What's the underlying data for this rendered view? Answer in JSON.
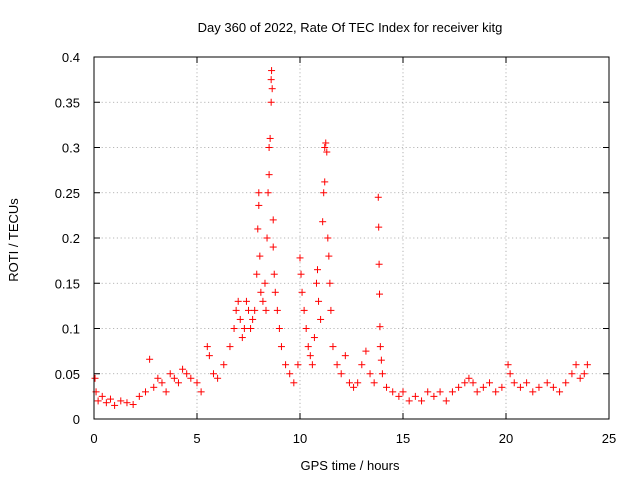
{
  "chart_data": {
    "type": "scatter",
    "title": "Day 360 of 2022, Rate Of TEC Index for receiver kitg",
    "xlabel": "GPS time / hours",
    "ylabel": "ROTI / TECUs",
    "xlim": [
      0,
      25
    ],
    "ylim": [
      0,
      0.4
    ],
    "grid": true,
    "x_ticks": [
      {
        "value": 0,
        "label": "0"
      },
      {
        "value": 5,
        "label": "5"
      },
      {
        "value": 10,
        "label": "10"
      },
      {
        "value": 15,
        "label": "15"
      },
      {
        "value": 20,
        "label": "20"
      },
      {
        "value": 25,
        "label": "25"
      }
    ],
    "y_ticks": [
      {
        "value": 0,
        "label": "0"
      },
      {
        "value": 0.05,
        "label": "0.05"
      },
      {
        "value": 0.1,
        "label": "0.1"
      },
      {
        "value": 0.15,
        "label": "0.15"
      },
      {
        "value": 0.2,
        "label": "0.2"
      },
      {
        "value": 0.25,
        "label": "0.25"
      },
      {
        "value": 0.3,
        "label": "0.3"
      },
      {
        "value": 0.35,
        "label": "0.35"
      },
      {
        "value": 0.4,
        "label": "0.4"
      }
    ],
    "marker": "+",
    "color": "#ff0000",
    "series": [
      {
        "name": "ROTI",
        "points": [
          [
            0.05,
            0.045
          ],
          [
            0.1,
            0.03
          ],
          [
            0.2,
            0.02
          ],
          [
            0.4,
            0.025
          ],
          [
            0.6,
            0.018
          ],
          [
            0.8,
            0.022
          ],
          [
            1.0,
            0.015
          ],
          [
            1.3,
            0.02
          ],
          [
            1.6,
            0.018
          ],
          [
            1.9,
            0.016
          ],
          [
            2.2,
            0.025
          ],
          [
            2.5,
            0.03
          ],
          [
            2.7,
            0.066
          ],
          [
            2.9,
            0.035
          ],
          [
            3.1,
            0.045
          ],
          [
            3.3,
            0.04
          ],
          [
            3.5,
            0.03
          ],
          [
            3.7,
            0.05
          ],
          [
            3.9,
            0.045
          ],
          [
            4.1,
            0.04
          ],
          [
            4.3,
            0.055
          ],
          [
            4.5,
            0.05
          ],
          [
            4.7,
            0.045
          ],
          [
            5.0,
            0.04
          ],
          [
            5.2,
            0.03
          ],
          [
            5.5,
            0.08
          ],
          [
            5.6,
            0.07
          ],
          [
            5.8,
            0.05
          ],
          [
            6.0,
            0.045
          ],
          [
            6.3,
            0.06
          ],
          [
            6.6,
            0.08
          ],
          [
            6.8,
            0.1
          ],
          [
            6.9,
            0.12
          ],
          [
            7.0,
            0.13
          ],
          [
            7.1,
            0.11
          ],
          [
            7.2,
            0.09
          ],
          [
            7.3,
            0.1
          ],
          [
            7.4,
            0.13
          ],
          [
            7.5,
            0.12
          ],
          [
            7.6,
            0.1
          ],
          [
            7.7,
            0.11
          ],
          [
            7.8,
            0.12
          ],
          [
            7.9,
            0.16
          ],
          [
            7.95,
            0.21
          ],
          [
            8.0,
            0.25
          ],
          [
            8.0,
            0.236
          ],
          [
            8.05,
            0.18
          ],
          [
            8.1,
            0.14
          ],
          [
            8.2,
            0.13
          ],
          [
            8.3,
            0.15
          ],
          [
            8.35,
            0.12
          ],
          [
            8.4,
            0.2
          ],
          [
            8.45,
            0.25
          ],
          [
            8.5,
            0.27
          ],
          [
            8.5,
            0.3
          ],
          [
            8.55,
            0.31
          ],
          [
            8.6,
            0.35
          ],
          [
            8.6,
            0.375
          ],
          [
            8.62,
            0.385
          ],
          [
            8.65,
            0.365
          ],
          [
            8.7,
            0.22
          ],
          [
            8.7,
            0.19
          ],
          [
            8.75,
            0.16
          ],
          [
            8.8,
            0.14
          ],
          [
            8.9,
            0.12
          ],
          [
            9.0,
            0.1
          ],
          [
            9.1,
            0.08
          ],
          [
            9.3,
            0.06
          ],
          [
            9.5,
            0.05
          ],
          [
            9.7,
            0.04
          ],
          [
            9.9,
            0.06
          ],
          [
            10.0,
            0.178
          ],
          [
            10.05,
            0.16
          ],
          [
            10.1,
            0.14
          ],
          [
            10.2,
            0.12
          ],
          [
            10.3,
            0.1
          ],
          [
            10.4,
            0.08
          ],
          [
            10.5,
            0.07
          ],
          [
            10.6,
            0.06
          ],
          [
            10.7,
            0.09
          ],
          [
            10.8,
            0.15
          ],
          [
            10.85,
            0.165
          ],
          [
            10.9,
            0.13
          ],
          [
            11.0,
            0.11
          ],
          [
            11.1,
            0.218
          ],
          [
            11.15,
            0.25
          ],
          [
            11.2,
            0.262
          ],
          [
            11.2,
            0.3
          ],
          [
            11.25,
            0.305
          ],
          [
            11.3,
            0.295
          ],
          [
            11.35,
            0.2
          ],
          [
            11.4,
            0.18
          ],
          [
            11.45,
            0.15
          ],
          [
            11.5,
            0.12
          ],
          [
            11.6,
            0.08
          ],
          [
            11.8,
            0.06
          ],
          [
            12.0,
            0.05
          ],
          [
            12.2,
            0.07
          ],
          [
            12.4,
            0.04
          ],
          [
            12.6,
            0.035
          ],
          [
            12.8,
            0.04
          ],
          [
            13.0,
            0.06
          ],
          [
            13.2,
            0.075
          ],
          [
            13.4,
            0.05
          ],
          [
            13.6,
            0.04
          ],
          [
            13.8,
            0.245
          ],
          [
            13.82,
            0.212
          ],
          [
            13.84,
            0.171
          ],
          [
            13.86,
            0.138
          ],
          [
            13.88,
            0.102
          ],
          [
            13.9,
            0.08
          ],
          [
            13.95,
            0.065
          ],
          [
            14.0,
            0.05
          ],
          [
            14.2,
            0.035
          ],
          [
            14.5,
            0.03
          ],
          [
            14.8,
            0.025
          ],
          [
            15.0,
            0.03
          ],
          [
            15.3,
            0.02
          ],
          [
            15.6,
            0.025
          ],
          [
            15.9,
            0.02
          ],
          [
            16.2,
            0.03
          ],
          [
            16.5,
            0.025
          ],
          [
            16.8,
            0.03
          ],
          [
            17.1,
            0.02
          ],
          [
            17.4,
            0.03
          ],
          [
            17.7,
            0.035
          ],
          [
            18.0,
            0.04
          ],
          [
            18.2,
            0.045
          ],
          [
            18.4,
            0.04
          ],
          [
            18.6,
            0.03
          ],
          [
            18.9,
            0.035
          ],
          [
            19.2,
            0.04
          ],
          [
            19.5,
            0.03
          ],
          [
            19.8,
            0.035
          ],
          [
            20.1,
            0.06
          ],
          [
            20.2,
            0.05
          ],
          [
            20.4,
            0.04
          ],
          [
            20.7,
            0.035
          ],
          [
            21.0,
            0.04
          ],
          [
            21.3,
            0.03
          ],
          [
            21.6,
            0.035
          ],
          [
            22.0,
            0.04
          ],
          [
            22.3,
            0.035
          ],
          [
            22.6,
            0.03
          ],
          [
            22.9,
            0.04
          ],
          [
            23.2,
            0.05
          ],
          [
            23.4,
            0.06
          ],
          [
            23.6,
            0.045
          ],
          [
            23.8,
            0.05
          ],
          [
            23.95,
            0.06
          ]
        ]
      }
    ]
  }
}
